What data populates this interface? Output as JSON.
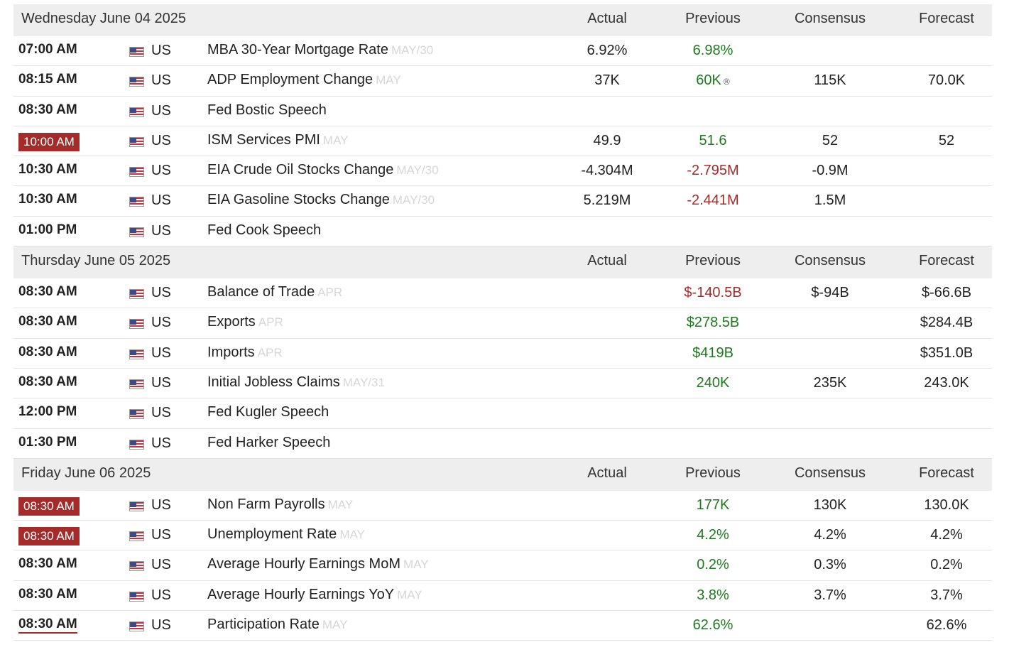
{
  "columns": {
    "actual": "Actual",
    "previous": "Previous",
    "consensus": "Consensus",
    "forecast": "Forecast"
  },
  "days": [
    {
      "date": "Wednesday June 04 2025",
      "events": [
        {
          "time": "07:00 AM",
          "highlight": false,
          "country": "US",
          "event": "MBA 30-Year Mortgage Rate",
          "ref": "MAY/30",
          "actual": "6.92%",
          "previous": "6.98%",
          "previous_class": "pos",
          "consensus": "",
          "forecast": ""
        },
        {
          "time": "08:15 AM",
          "highlight": false,
          "country": "US",
          "event": "ADP Employment Change",
          "ref": "MAY",
          "actual": "37K",
          "previous": "60K",
          "previous_class": "pos",
          "previous_revised": "®",
          "consensus": "115K",
          "forecast": "70.0K"
        },
        {
          "time": "08:30 AM",
          "highlight": false,
          "country": "US",
          "event": "Fed Bostic Speech",
          "ref": "",
          "actual": "",
          "previous": "",
          "previous_class": "",
          "consensus": "",
          "forecast": ""
        },
        {
          "time": "10:00 AM",
          "highlight": true,
          "country": "US",
          "event": "ISM Services PMI",
          "ref": "MAY",
          "actual": "49.9",
          "previous": "51.6",
          "previous_class": "pos",
          "consensus": "52",
          "forecast": "52"
        },
        {
          "time": "10:30 AM",
          "highlight": false,
          "country": "US",
          "event": "EIA Crude Oil Stocks Change",
          "ref": "MAY/30",
          "actual": "-4.304M",
          "previous": "-2.795M",
          "previous_class": "neg",
          "consensus": "-0.9M",
          "forecast": ""
        },
        {
          "time": "10:30 AM",
          "highlight": false,
          "country": "US",
          "event": "EIA Gasoline Stocks Change",
          "ref": "MAY/30",
          "actual": "5.219M",
          "previous": "-2.441M",
          "previous_class": "neg",
          "consensus": "1.5M",
          "forecast": ""
        },
        {
          "time": "01:00 PM",
          "highlight": false,
          "country": "US",
          "event": "Fed Cook Speech",
          "ref": "",
          "actual": "",
          "previous": "",
          "previous_class": "",
          "consensus": "",
          "forecast": ""
        }
      ]
    },
    {
      "date": "Thursday June 05 2025",
      "events": [
        {
          "time": "08:30 AM",
          "highlight": false,
          "country": "US",
          "event": "Balance of Trade",
          "ref": "APR",
          "actual": "",
          "previous": "$-140.5B",
          "previous_class": "neg",
          "consensus": "$-94B",
          "forecast": "$-66.6B"
        },
        {
          "time": "08:30 AM",
          "highlight": false,
          "country": "US",
          "event": "Exports",
          "ref": "APR",
          "actual": "",
          "previous": "$278.5B",
          "previous_class": "pos",
          "consensus": "",
          "forecast": "$284.4B"
        },
        {
          "time": "08:30 AM",
          "highlight": false,
          "country": "US",
          "event": "Imports",
          "ref": "APR",
          "actual": "",
          "previous": "$419B",
          "previous_class": "pos",
          "consensus": "",
          "forecast": "$351.0B"
        },
        {
          "time": "08:30 AM",
          "highlight": false,
          "country": "US",
          "event": "Initial Jobless Claims",
          "ref": "MAY/31",
          "actual": "",
          "previous": "240K",
          "previous_class": "pos",
          "consensus": "235K",
          "forecast": "243.0K"
        },
        {
          "time": "12:00 PM",
          "highlight": false,
          "country": "US",
          "event": "Fed Kugler Speech",
          "ref": "",
          "actual": "",
          "previous": "",
          "previous_class": "",
          "consensus": "",
          "forecast": ""
        },
        {
          "time": "01:30 PM",
          "highlight": false,
          "country": "US",
          "event": "Fed Harker Speech",
          "ref": "",
          "actual": "",
          "previous": "",
          "previous_class": "",
          "consensus": "",
          "forecast": ""
        }
      ]
    },
    {
      "date": "Friday June 06 2025",
      "events": [
        {
          "time": "08:30 AM",
          "highlight": true,
          "country": "US",
          "event": "Non Farm Payrolls",
          "ref": "MAY",
          "actual": "",
          "previous": "177K",
          "previous_class": "pos",
          "consensus": "130K",
          "forecast": "130.0K"
        },
        {
          "time": "08:30 AM",
          "highlight": true,
          "country": "US",
          "event": "Unemployment Rate",
          "ref": "MAY",
          "actual": "",
          "previous": "4.2%",
          "previous_class": "pos",
          "consensus": "4.2%",
          "forecast": "4.2%"
        },
        {
          "time": "08:30 AM",
          "highlight": false,
          "country": "US",
          "event": "Average Hourly Earnings MoM",
          "ref": "MAY",
          "actual": "",
          "previous": "0.2%",
          "previous_class": "pos",
          "consensus": "0.3%",
          "forecast": "0.2%"
        },
        {
          "time": "08:30 AM",
          "highlight": false,
          "country": "US",
          "event": "Average Hourly Earnings YoY",
          "ref": "MAY",
          "actual": "",
          "previous": "3.8%",
          "previous_class": "pos",
          "consensus": "3.7%",
          "forecast": "3.7%"
        },
        {
          "time": "08:30 AM",
          "highlight": false,
          "underlined": true,
          "country": "US",
          "event": "Participation Rate",
          "ref": "MAY",
          "actual": "",
          "previous": "62.6%",
          "previous_class": "pos",
          "consensus": "",
          "forecast": "62.6%"
        }
      ]
    }
  ],
  "colors": {
    "positive": "#1f7a1f",
    "negative": "#a52a2a",
    "highlight_bg": "#a52a2a",
    "header_bg": "#eeeeee"
  },
  "icons": {
    "flag": "us-flag-icon"
  }
}
